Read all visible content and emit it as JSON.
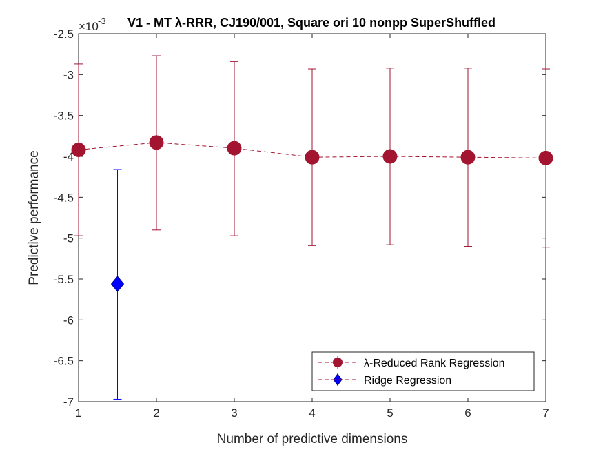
{
  "chart_data": {
    "type": "scatter",
    "title": "V1 - MT λ-RRR, CJ190/001, Square ori 10 nonpp  SuperShuffled",
    "xlabel": "Number of predictive dimensions",
    "ylabel": "Predictive performance",
    "y_exponent_label": "×10",
    "y_exponent_power": "-3",
    "xlim": [
      1,
      7
    ],
    "ylim": [
      -7,
      -2.5
    ],
    "x_ticks": [
      "1",
      "2",
      "3",
      "4",
      "5",
      "6",
      "7"
    ],
    "y_ticks": [
      "-2.5",
      "-3",
      "-3.5",
      "-4",
      "-4.5",
      "-5",
      "-5.5",
      "-6",
      "-6.5",
      "-7"
    ],
    "grid": false,
    "legend_position": "bottom-right",
    "series": [
      {
        "name": "λ-Reduced Rank Regression",
        "color": "#a2142f",
        "marker": "circle",
        "line_style": "dashed",
        "x": [
          1,
          2,
          3,
          4,
          5,
          6,
          7
        ],
        "y": [
          -3.92,
          -3.83,
          -3.9,
          -4.01,
          -4.0,
          -4.01,
          -4.02
        ],
        "err_low": [
          -4.97,
          -4.9,
          -4.97,
          -5.09,
          -5.08,
          -5.1,
          -5.11
        ],
        "err_high": [
          -2.87,
          -2.77,
          -2.84,
          -2.93,
          -2.92,
          -2.92,
          -2.93
        ]
      },
      {
        "name": "Ridge Regression",
        "color": "#0000ff",
        "marker": "diamond",
        "line_style": "none",
        "x": [
          1.5
        ],
        "y": [
          -5.56
        ],
        "err_low": [
          -6.97
        ],
        "err_high": [
          -4.16
        ]
      }
    ]
  }
}
